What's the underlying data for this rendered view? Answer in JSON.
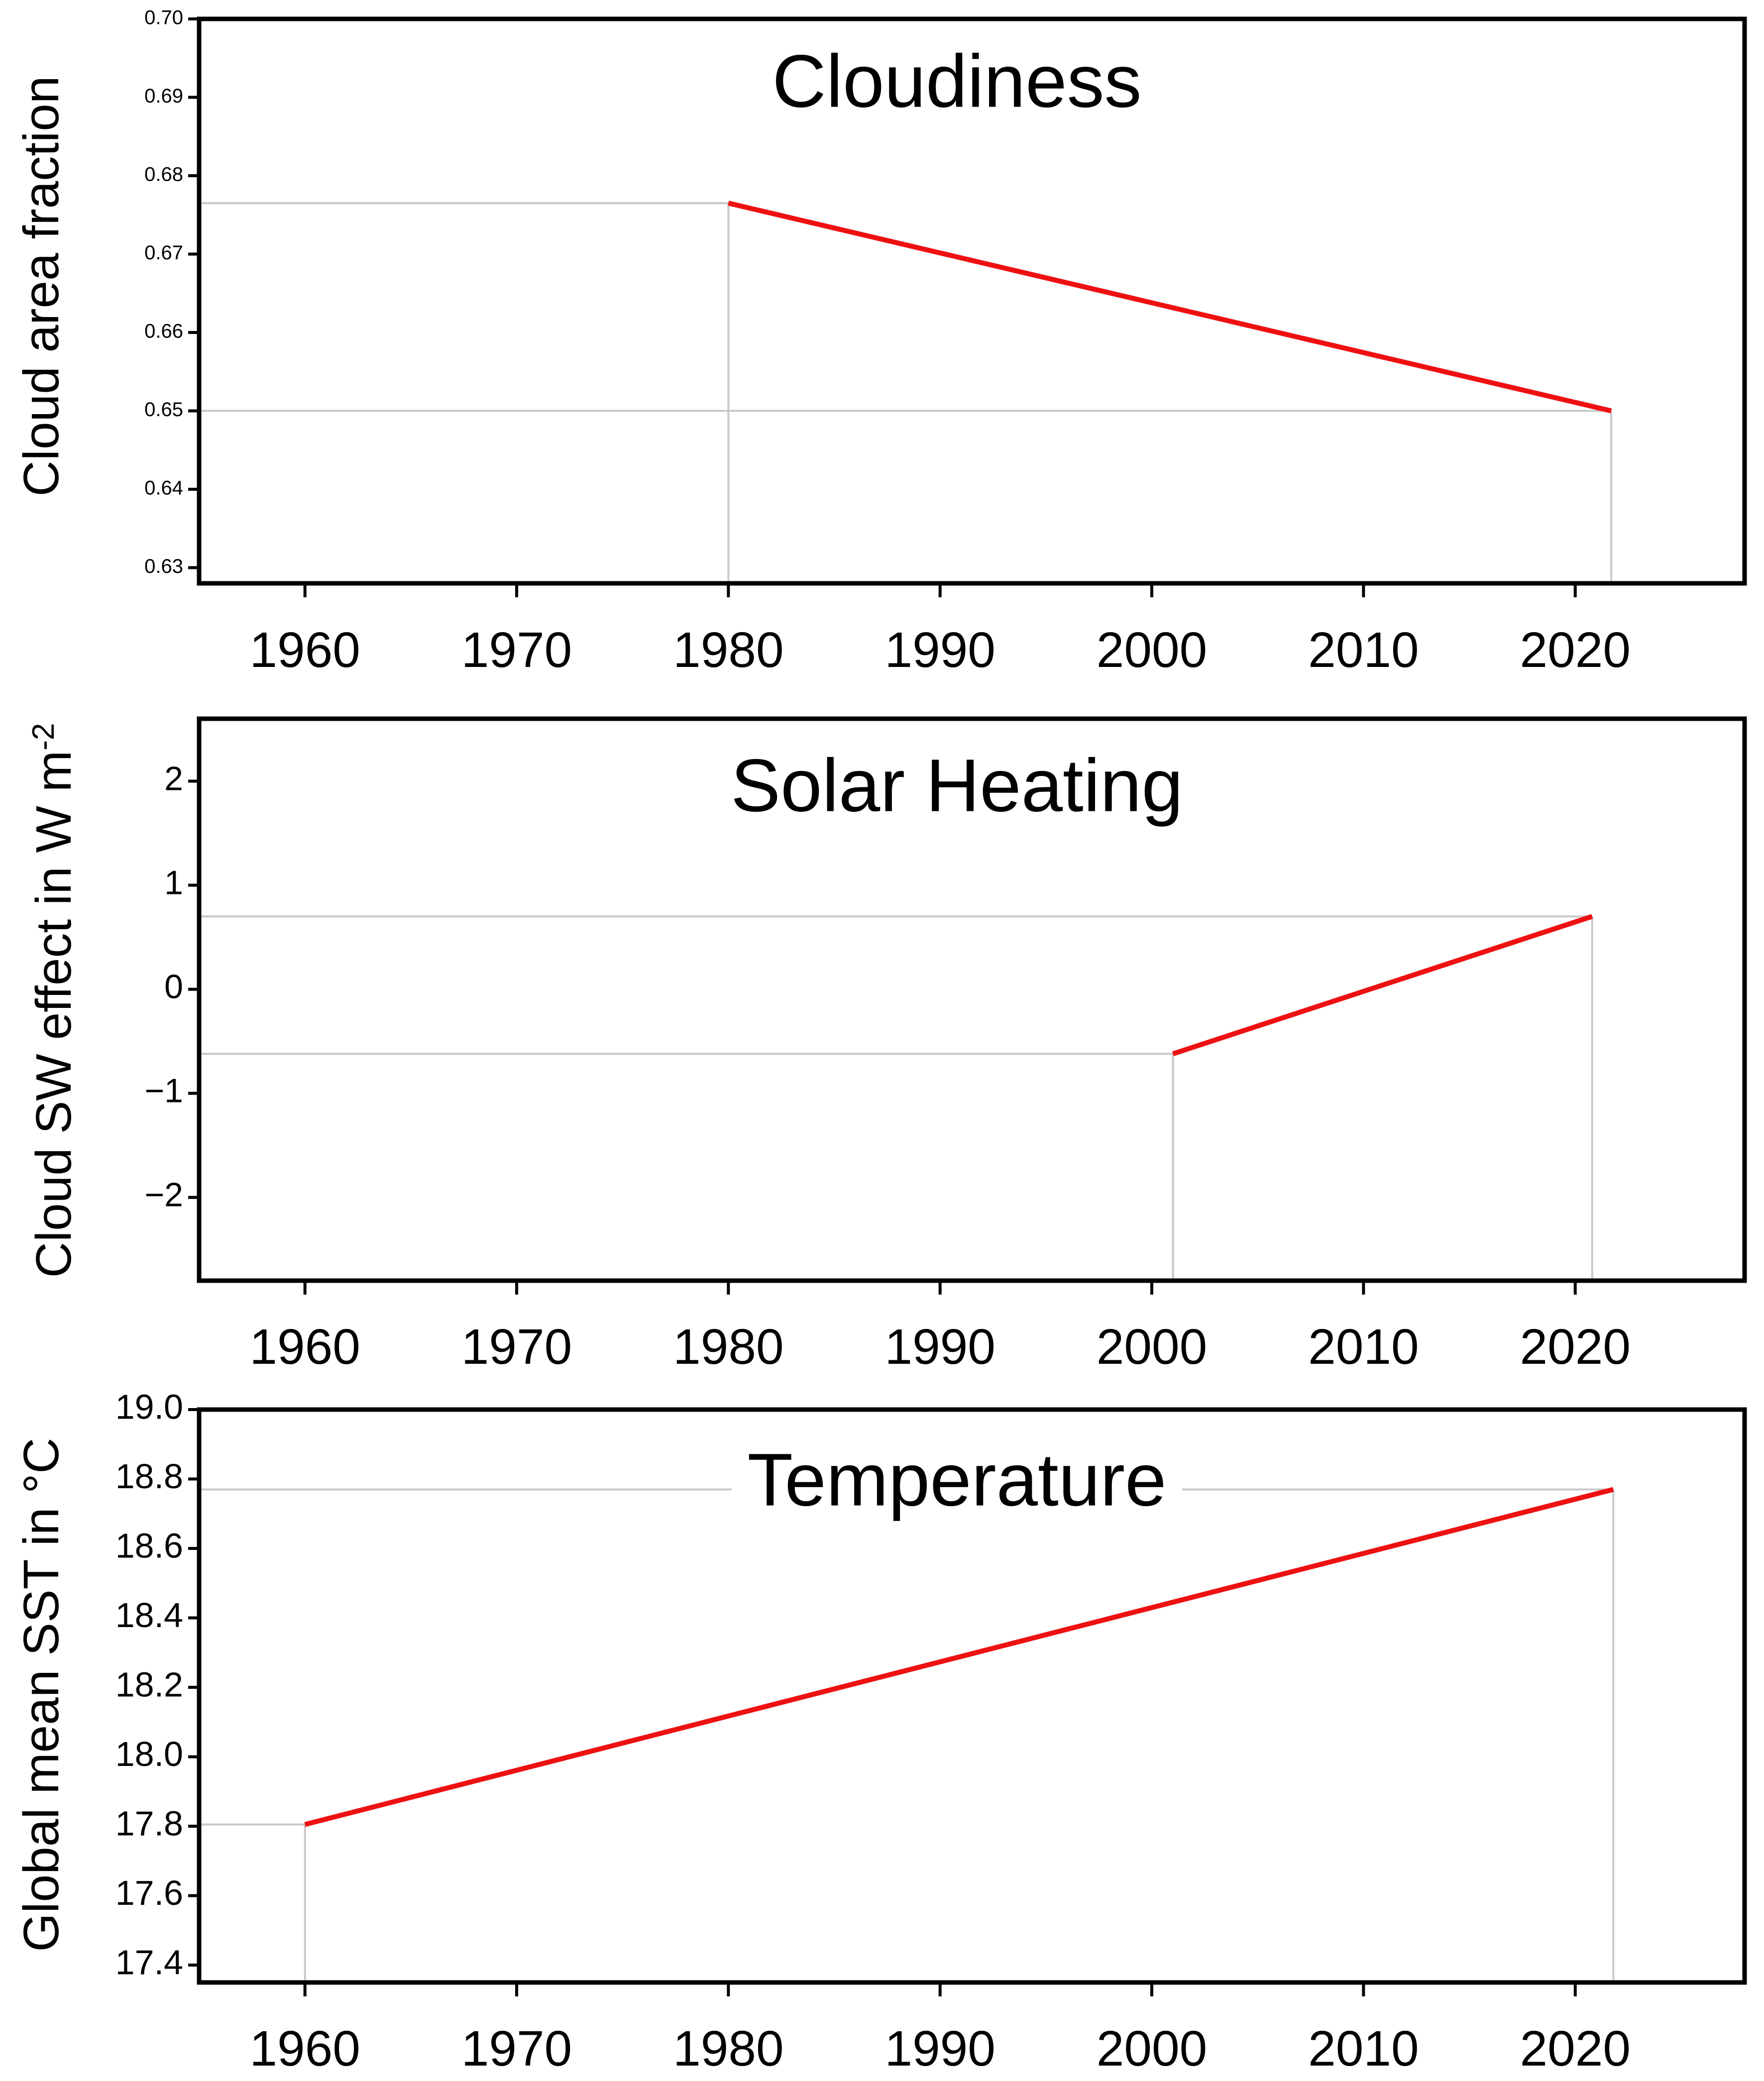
{
  "chart_data": [
    {
      "type": "line",
      "title": "Cloudiness",
      "ylabel": "Cloud area fraction",
      "xlabel": "",
      "xlim": [
        1955,
        2028
      ],
      "ylim": [
        0.628,
        0.7
      ],
      "xticks": [
        1960,
        1970,
        1980,
        1990,
        2000,
        2010,
        2020
      ],
      "yticks": [
        "0.63",
        "0.64",
        "0.65",
        "0.66",
        "0.67",
        "0.68",
        "0.69",
        "0.70"
      ],
      "series": [
        {
          "x": [
            1980,
            2021.7
          ],
          "y": [
            0.6765,
            0.65
          ],
          "color": "#ee1111"
        }
      ],
      "guides": {
        "x": [
          1980,
          2021.7
        ],
        "y": [
          0.6765,
          0.65
        ]
      }
    },
    {
      "type": "line",
      "title": "Solar Heating",
      "ylabel": "Cloud SW effect in W m",
      "ylabel_sup": "-2",
      "xlabel": "",
      "xlim": [
        1955,
        2028
      ],
      "ylim": [
        -2.8,
        2.6
      ],
      "xticks": [
        1960,
        1970,
        1980,
        1990,
        2000,
        2010,
        2020
      ],
      "yticks": [
        "−2",
        "−1",
        "0",
        "1",
        "2"
      ],
      "series": [
        {
          "x": [
            2001,
            2020.8
          ],
          "y": [
            -0.62,
            0.7
          ],
          "color": "#ee1111"
        }
      ],
      "guides": {
        "x": [
          2001,
          2020.8
        ],
        "y": [
          -0.62,
          0.7
        ]
      }
    },
    {
      "type": "line",
      "title": "Temperature",
      "ylabel": "Global mean SST in °C",
      "xlabel": "",
      "xlim": [
        1955,
        2028
      ],
      "ylim": [
        17.35,
        19.0
      ],
      "xticks": [
        1960,
        1970,
        1980,
        1990,
        2000,
        2010,
        2020
      ],
      "yticks": [
        "17.4",
        "17.6",
        "17.8",
        "18.0",
        "18.2",
        "18.4",
        "18.6",
        "18.8",
        "19.0"
      ],
      "series": [
        {
          "x": [
            1960,
            2021.8
          ],
          "y": [
            17.805,
            18.77
          ],
          "color": "#ee1111"
        }
      ],
      "guides": {
        "x": [
          1960,
          2021.8
        ],
        "y": [
          17.805,
          18.77
        ]
      }
    }
  ]
}
